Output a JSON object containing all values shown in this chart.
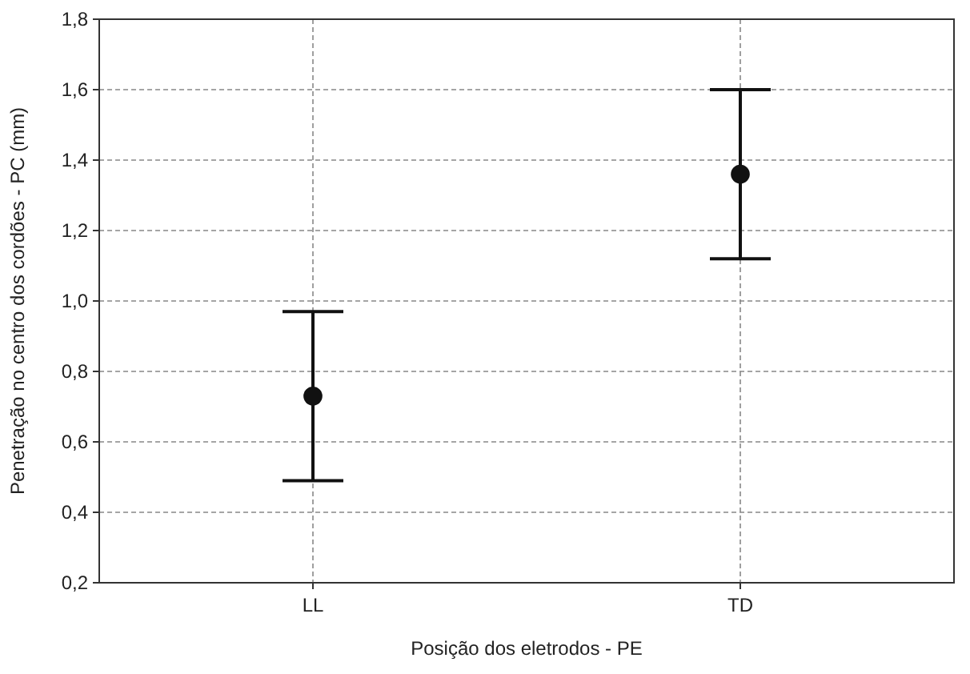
{
  "chart_data": {
    "type": "scatter",
    "xlabel": "Posição dos eletrodos - PE",
    "ylabel": "Penetração no centro dos cordões - PC (mm)",
    "categories": [
      "LL",
      "TD"
    ],
    "values": [
      0.73,
      1.36
    ],
    "errors": [
      0.24,
      0.24
    ],
    "color": "#111111",
    "marker": "circle",
    "ylim": [
      0.2,
      1.8
    ],
    "yticks": [
      {
        "value": 0.2,
        "label": "0,2"
      },
      {
        "value": 0.4,
        "label": "0,4"
      },
      {
        "value": 0.6,
        "label": "0,6"
      },
      {
        "value": 0.8,
        "label": "0,8"
      },
      {
        "value": 1.0,
        "label": "1,0"
      },
      {
        "value": 1.2,
        "label": "1,2"
      },
      {
        "value": 1.4,
        "label": "1,4"
      },
      {
        "value": 1.6,
        "label": "1,6"
      },
      {
        "value": 1.8,
        "label": "1,8"
      }
    ],
    "grid": true
  }
}
